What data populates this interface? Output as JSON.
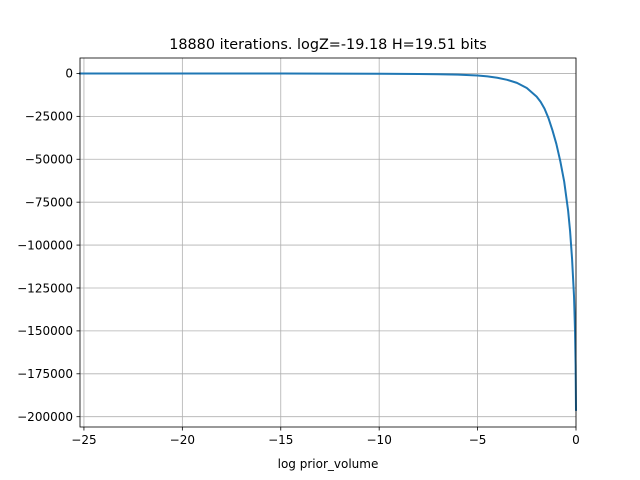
{
  "chart_data": {
    "type": "line",
    "title": "18880 iterations. logZ=-19.18 H=19.51 bits",
    "xlabel": "log prior_volume",
    "ylabel": "",
    "xlim": [
      -25.2,
      0.0
    ],
    "ylim": [
      -206000,
      9000
    ],
    "xticks": [
      -25,
      -20,
      -15,
      -10,
      -5,
      0
    ],
    "xtick_labels": [
      "−25",
      "−20",
      "−15",
      "−10",
      "−5",
      "0"
    ],
    "yticks": [
      0,
      -25000,
      -50000,
      -75000,
      -100000,
      -125000,
      -150000,
      -175000,
      -200000
    ],
    "ytick_labels": [
      "0",
      "−25000",
      "−50000",
      "−75000",
      "−100000",
      "−125000",
      "−150000",
      "−175000",
      "−200000"
    ],
    "grid": true,
    "color": "#1f77b4",
    "series": [
      {
        "name": "",
        "x": [
          -25.2,
          -20,
          -15,
          -10,
          -8,
          -7,
          -6,
          -5,
          -4.5,
          -4,
          -3.5,
          -3,
          -2.5,
          -2,
          -1.8,
          -1.6,
          -1.4,
          -1.2,
          -1.0,
          -0.8,
          -0.6,
          -0.4,
          -0.3,
          -0.2,
          -0.1,
          -0.05,
          -0.02,
          0.0
        ],
        "y": [
          -10,
          -20,
          -50,
          -150,
          -300,
          -450,
          -700,
          -1200,
          -1700,
          -2500,
          -3700,
          -5500,
          -8500,
          -13500,
          -16500,
          -20500,
          -26000,
          -33000,
          -41000,
          -51000,
          -63000,
          -80000,
          -92000,
          -108000,
          -130000,
          -150000,
          -170000,
          -196000
        ]
      }
    ]
  }
}
